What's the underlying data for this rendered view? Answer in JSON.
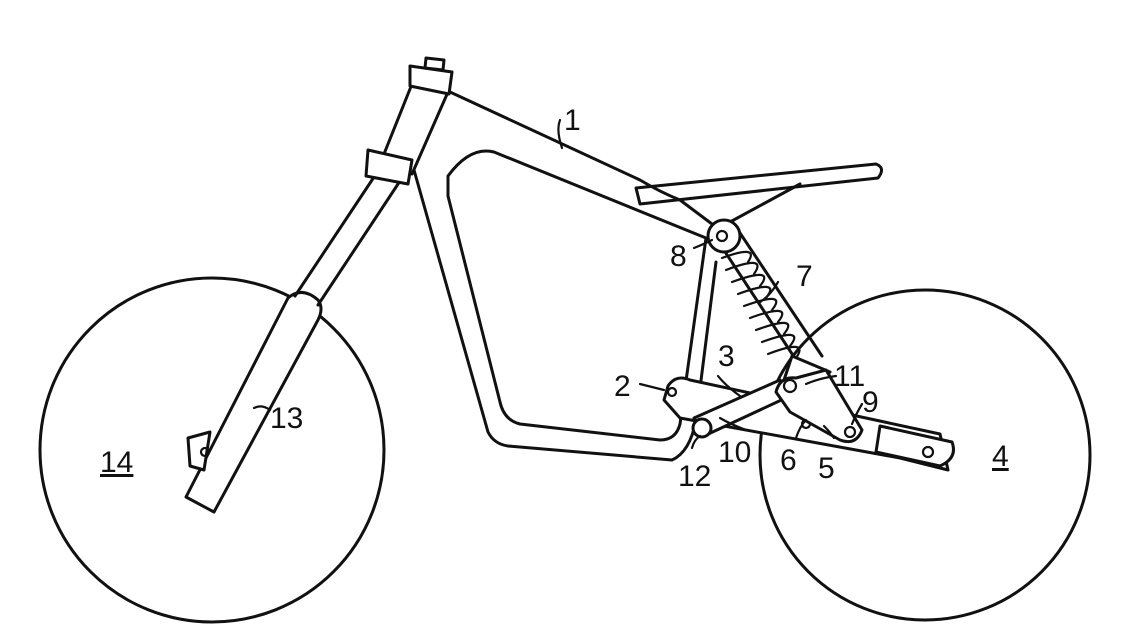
{
  "figure": {
    "labels": {
      "frame": "1",
      "pivot_bracket": "2",
      "upper_link": "3",
      "rear_wheel": "4",
      "swing_arm": "5",
      "swing_arm_pivot": "6",
      "shock_absorber": "7",
      "upper_shock_mount": "8",
      "rocker_pivot": "9",
      "lower_link": "10",
      "rocker_shock_pivot": "11",
      "lower_link_pivot": "12",
      "front_fork": "13",
      "front_wheel": "14"
    }
  }
}
